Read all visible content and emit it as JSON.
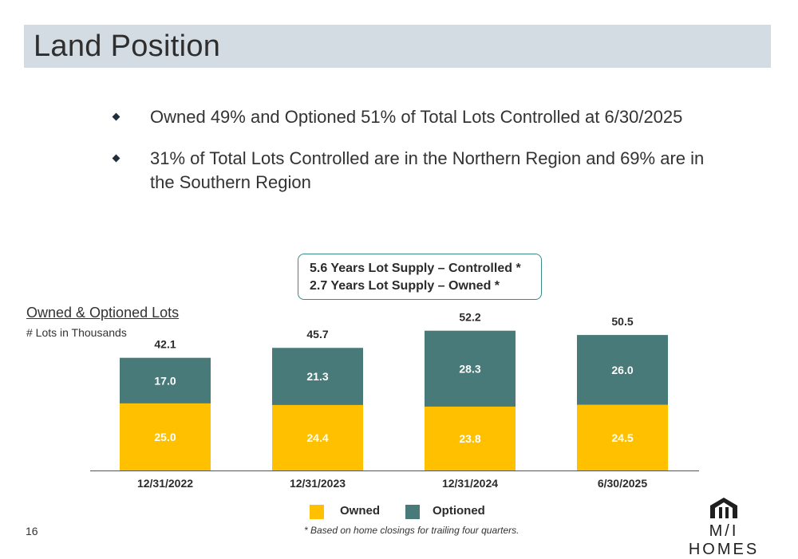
{
  "title": "Land Position",
  "bullets": [
    "Owned 49% and Optioned 51% of Total Lots Controlled at 6/30/2025",
    "31% of Total Lots Controlled are in the Northern Region and 69% are in the Southern Region"
  ],
  "supply_box": {
    "line1": "5.6 Years Lot Supply – Controlled *",
    "line2": "2.7 Years Lot Supply – Owned *"
  },
  "chart_data": {
    "type": "bar",
    "stacked": true,
    "title": "Owned & Optioned Lots",
    "subtitle": "# Lots in Thousands",
    "categories": [
      "12/31/2022",
      "12/31/2023",
      "12/31/2024",
      "6/30/2025"
    ],
    "series": [
      {
        "name": "Owned",
        "values": [
          25.0,
          24.4,
          23.8,
          24.5
        ],
        "color": "#ffc000"
      },
      {
        "name": "Optioned",
        "values": [
          17.0,
          21.3,
          28.3,
          26.0
        ],
        "color": "#477a78"
      }
    ],
    "totals": [
      42.1,
      45.7,
      52.2,
      50.5
    ],
    "ylim": [
      0,
      55
    ],
    "legend_position": "bottom",
    "grid": false
  },
  "legend": {
    "owned": "Owned",
    "optioned": "Optioned"
  },
  "footnote": "* Based on home closings for trailing four quarters.",
  "page_number": "16",
  "logo": {
    "text": "M/I HOMES",
    "icon": "house-logo-icon"
  }
}
